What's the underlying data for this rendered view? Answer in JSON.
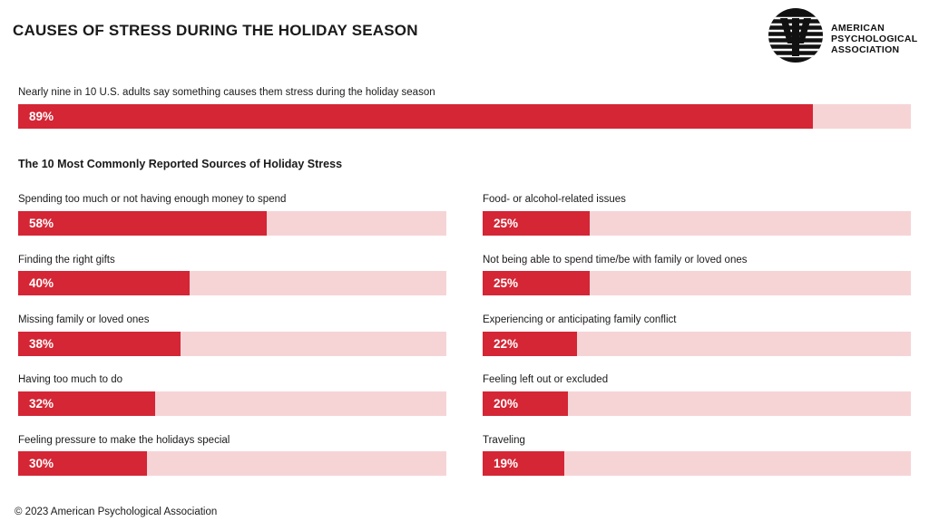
{
  "title": "CAUSES OF STRESS DURING THE HOLIDAY SEASON",
  "logo": {
    "icon": "psi-logo-icon",
    "lines": [
      "AMERICAN",
      "PSYCHOLOGICAL",
      "ASSOCIATION"
    ]
  },
  "colors": {
    "bar_fill": "#d42635",
    "bar_track": "#f6d4d6",
    "text": "#1a1a1a"
  },
  "footer": "© 2023 American Psychological Association",
  "chart_data": [
    {
      "type": "bar",
      "orientation": "horizontal",
      "title": "",
      "xlim": [
        0,
        100
      ],
      "categories": [
        "Nearly nine in 10 U.S. adults say something causes them stress during the holiday season"
      ],
      "values": [
        89
      ],
      "value_labels": [
        "89%"
      ]
    },
    {
      "type": "bar",
      "orientation": "horizontal",
      "title": "The 10 Most Commonly Reported Sources of Holiday Stress",
      "xlim": [
        0,
        100
      ],
      "layout": "two-columns",
      "categories": [
        "Spending too much or not having enough money to spend",
        "Finding the right gifts",
        "Missing family or loved ones",
        "Having too much to do",
        "Feeling pressure to make the holidays special",
        "Food- or alcohol-related issues",
        "Not being able to spend time/be with family or loved ones",
        "Experiencing or anticipating family conflict",
        "Feeling left out or excluded",
        "Traveling"
      ],
      "values": [
        58,
        40,
        38,
        32,
        30,
        25,
        25,
        22,
        20,
        19
      ],
      "value_labels": [
        "58%",
        "40%",
        "38%",
        "32%",
        "30%",
        "25%",
        "25%",
        "22%",
        "20%",
        "19%"
      ]
    }
  ]
}
